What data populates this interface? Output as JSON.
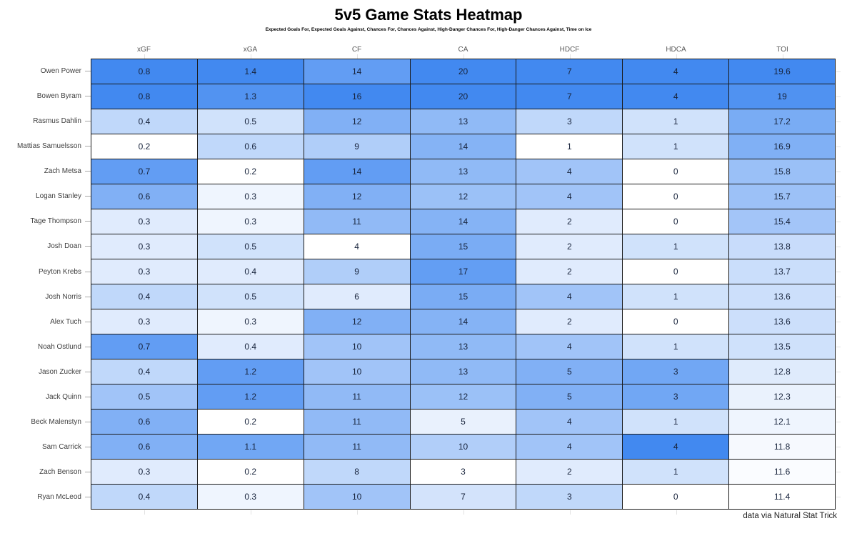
{
  "title": "5v5 Game Stats Heatmap",
  "subtitle": "Expected Goals For, Expected Goals Against, Chances For, Chances Against, High-Danger Chances For, High-Danger Chances Against, Time on Ice",
  "footer": "data via Natural Stat Trick",
  "colors": {
    "heat_max": "#4289f0",
    "heat_min": "#ffffff",
    "grid_line": "#1a1a1a",
    "header_text": "#595959",
    "label_text": "#404040",
    "cell_text": "#17233b"
  },
  "chart_data": {
    "type": "heatmap",
    "title": "5v5 Game Stats Heatmap",
    "subtitle": "Expected Goals For, Expected Goals Against, Chances For, Chances Against, High-Danger Chances For, High-Danger Chances Against, Time on Ice",
    "columns": [
      "xGF",
      "xGA",
      "CF",
      "CA",
      "HDCF",
      "HDCA",
      "TOI"
    ],
    "players": [
      "Owen Power",
      "Bowen Byram",
      "Rasmus Dahlin",
      "Mattias Samuelsson",
      "Zach Metsa",
      "Logan Stanley",
      "Tage Thompson",
      "Josh Doan",
      "Peyton Krebs",
      "Josh Norris",
      "Alex Tuch",
      "Noah Ostlund",
      "Jason Zucker",
      "Jack Quinn",
      "Beck Malenstyn",
      "Sam Carrick",
      "Zach Benson",
      "Ryan McLeod"
    ],
    "rows": [
      [
        "0.8",
        "1.4",
        "14",
        "20",
        "7",
        "4",
        "19.6"
      ],
      [
        "0.8",
        "1.3",
        "16",
        "20",
        "7",
        "4",
        "19"
      ],
      [
        "0.4",
        "0.5",
        "12",
        "13",
        "3",
        "1",
        "17.2"
      ],
      [
        "0.2",
        "0.6",
        "9",
        "14",
        "1",
        "1",
        "16.9"
      ],
      [
        "0.7",
        "0.2",
        "14",
        "13",
        "4",
        "0",
        "15.8"
      ],
      [
        "0.6",
        "0.3",
        "12",
        "12",
        "4",
        "0",
        "15.7"
      ],
      [
        "0.3",
        "0.3",
        "11",
        "14",
        "2",
        "0",
        "15.4"
      ],
      [
        "0.3",
        "0.5",
        "4",
        "15",
        "2",
        "1",
        "13.8"
      ],
      [
        "0.3",
        "0.4",
        "9",
        "17",
        "2",
        "0",
        "13.7"
      ],
      [
        "0.4",
        "0.5",
        "6",
        "15",
        "4",
        "1",
        "13.6"
      ],
      [
        "0.3",
        "0.3",
        "12",
        "14",
        "2",
        "0",
        "13.6"
      ],
      [
        "0.7",
        "0.4",
        "10",
        "13",
        "4",
        "1",
        "13.5"
      ],
      [
        "0.4",
        "1.2",
        "10",
        "13",
        "5",
        "3",
        "12.8"
      ],
      [
        "0.5",
        "1.2",
        "11",
        "12",
        "5",
        "3",
        "12.3"
      ],
      [
        "0.6",
        "0.2",
        "11",
        "5",
        "4",
        "1",
        "12.1"
      ],
      [
        "0.6",
        "1.1",
        "11",
        "10",
        "4",
        "4",
        "11.8"
      ],
      [
        "0.3",
        "0.2",
        "8",
        "3",
        "2",
        "1",
        "11.6"
      ],
      [
        "0.4",
        "0.3",
        "10",
        "7",
        "3",
        "0",
        "11.4"
      ]
    ],
    "color_scale": {
      "normalize": "per-column-min-max",
      "min_color": "#ffffff",
      "max_color": "#4289f0"
    },
    "legend_position": "none",
    "grid": true
  }
}
